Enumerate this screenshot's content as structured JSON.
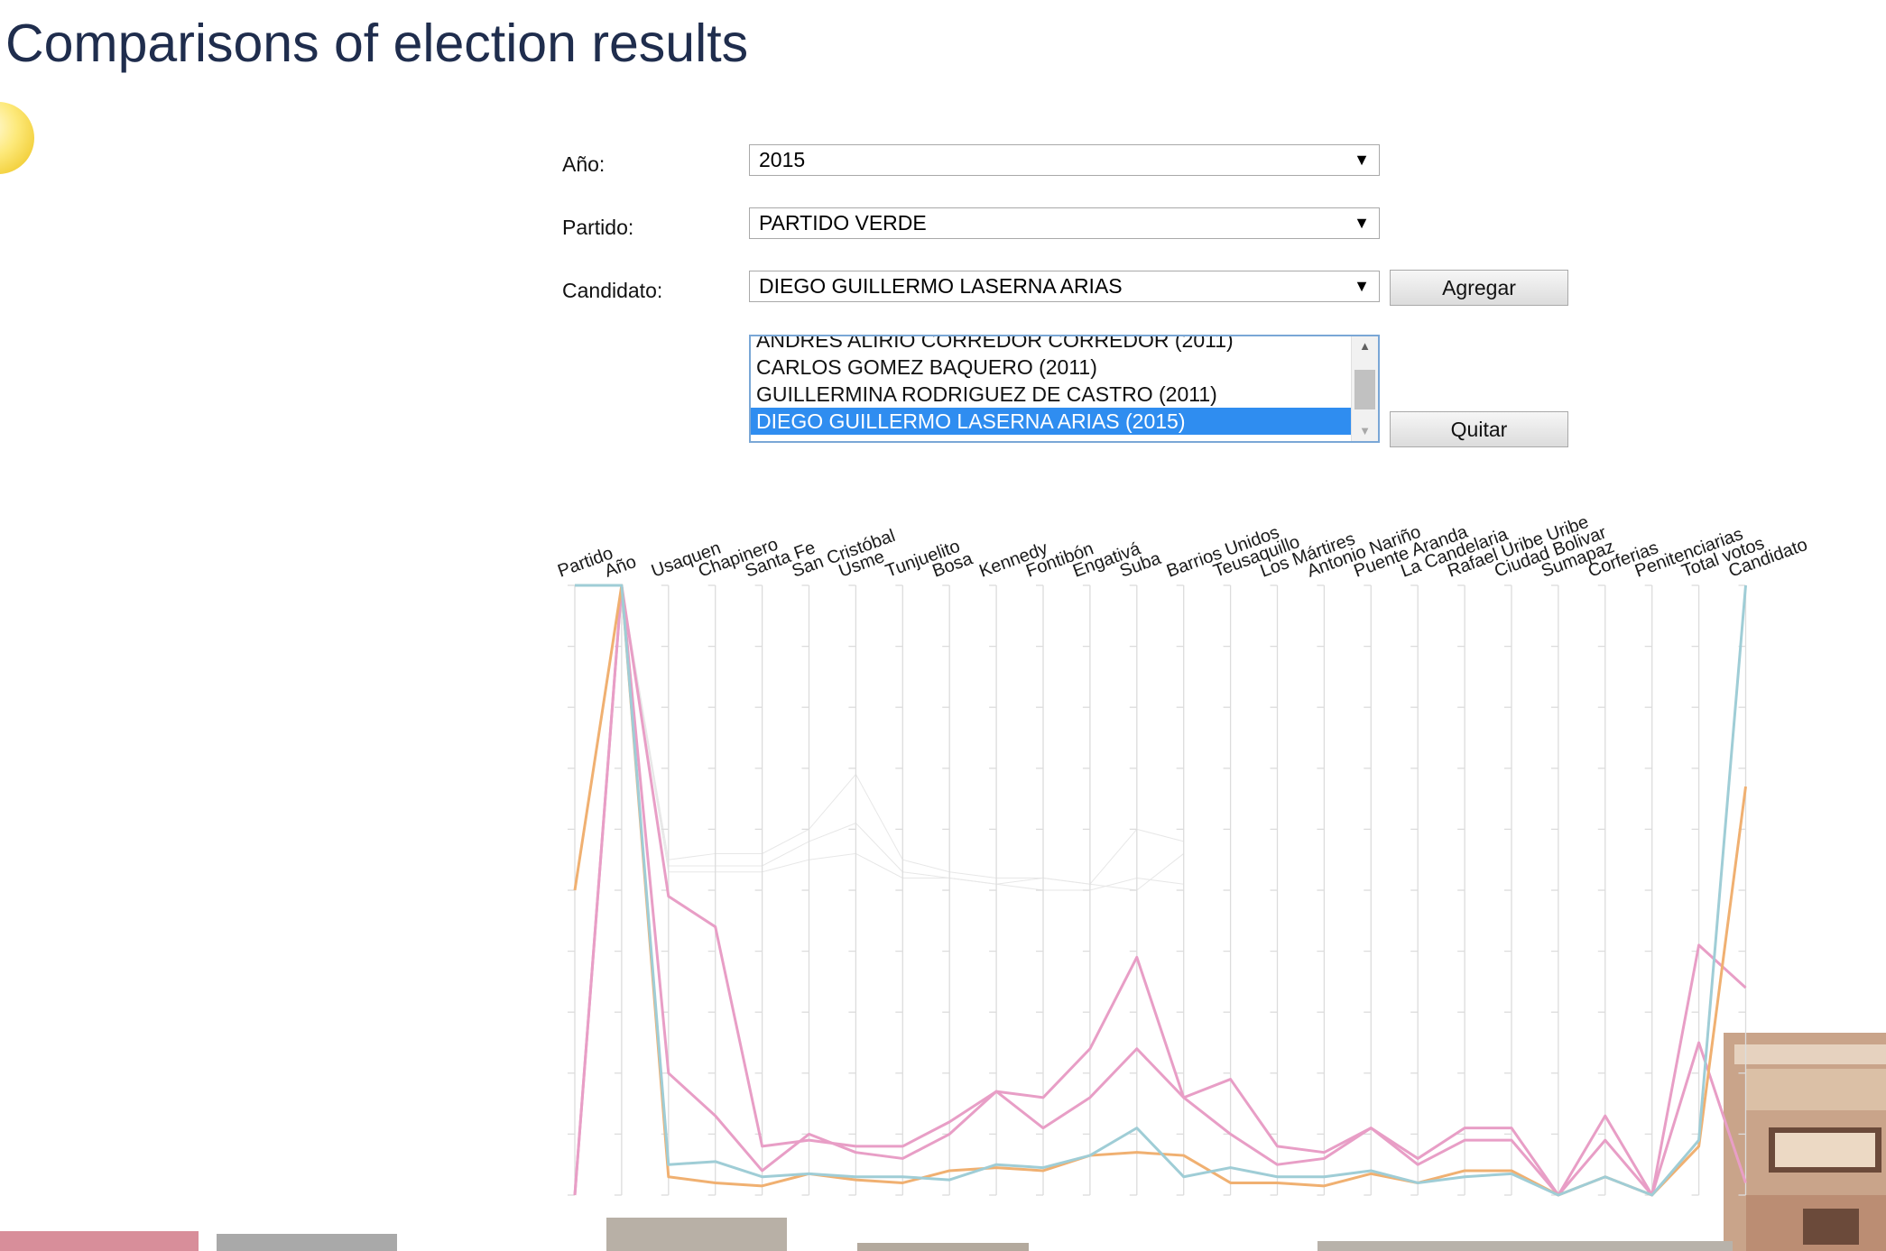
{
  "page": {
    "title": "Comparisons of election results"
  },
  "form": {
    "year_label": "Año:",
    "year_value": "2015",
    "party_label": "Partido:",
    "party_value": "PARTIDO VERDE",
    "candidate_label": "Candidato:",
    "candidate_value": "DIEGO GUILLERMO LASERNA ARIAS",
    "add_button": "Agregar",
    "remove_button": "Quitar",
    "selected_list": [
      "ANDRES ALIRIO CORREDOR CORREDOR (2011)",
      "CARLOS GOMEZ BAQUERO (2011)",
      "GUILLERMINA RODRIGUEZ DE CASTRO (2011)",
      "DIEGO GUILLERMO LASERNA ARIAS (2015)"
    ],
    "selected_index": 3
  },
  "icons": {
    "scroll_up": "up-arrow-icon",
    "scroll_down": "down-arrow-icon",
    "dropdown": "down-triangle-icon",
    "decoration": "sun-icon"
  },
  "chart_data": {
    "type": "parallel-coordinates",
    "dimensions": [
      "Partido",
      "Año",
      "Usaquen",
      "Chapinero",
      "Santa Fe",
      "San Cristóbal",
      "Usme",
      "Tunjuelito",
      "Bosa",
      "Kennedy",
      "Fontibón",
      "Engativá",
      "Suba",
      "Barrios Unidos",
      "Teusaquillo",
      "Los Mártires",
      "Antonio Nariño",
      "Puente Aranda",
      "La Candelaria",
      "Rafael Uribe Uribe",
      "Ciudad Bolivar",
      "Sumapaz",
      "Corferias",
      "Penitenciarias",
      "Total votos",
      "Candidato"
    ],
    "value_range": [
      0,
      1
    ],
    "grid": false,
    "series": [
      {
        "color": "#e89ec6",
        "values": [
          0.0,
          1.0,
          0.49,
          0.44,
          0.08,
          0.09,
          0.08,
          0.08,
          0.12,
          0.17,
          0.16,
          0.24,
          0.39,
          0.16,
          0.19,
          0.08,
          0.07,
          0.11,
          0.06,
          0.11,
          0.11,
          0.0,
          0.13,
          0.0,
          0.41,
          0.34
        ]
      },
      {
        "color": "#e89ec6",
        "values": [
          0.0,
          1.0,
          0.2,
          0.13,
          0.04,
          0.1,
          0.07,
          0.06,
          0.1,
          0.17,
          0.11,
          0.16,
          0.24,
          0.16,
          0.1,
          0.05,
          0.06,
          0.11,
          0.05,
          0.09,
          0.09,
          0.0,
          0.09,
          0.0,
          0.25,
          0.02
        ]
      },
      {
        "color": "#f0b071",
        "values": [
          0.5,
          1.0,
          0.03,
          0.02,
          0.015,
          0.035,
          0.025,
          0.02,
          0.04,
          0.045,
          0.04,
          0.065,
          0.07,
          0.065,
          0.02,
          0.02,
          0.015,
          0.035,
          0.02,
          0.04,
          0.04,
          0.0,
          0.03,
          0.0,
          0.08,
          0.67
        ]
      },
      {
        "color": "#9fcdd6",
        "values": [
          1.0,
          1.0,
          0.05,
          0.055,
          0.03,
          0.035,
          0.03,
          0.03,
          0.025,
          0.05,
          0.045,
          0.065,
          0.11,
          0.03,
          0.045,
          0.03,
          0.03,
          0.04,
          0.02,
          0.03,
          0.035,
          0.0,
          0.03,
          0.0,
          0.09,
          1.0
        ]
      }
    ]
  }
}
